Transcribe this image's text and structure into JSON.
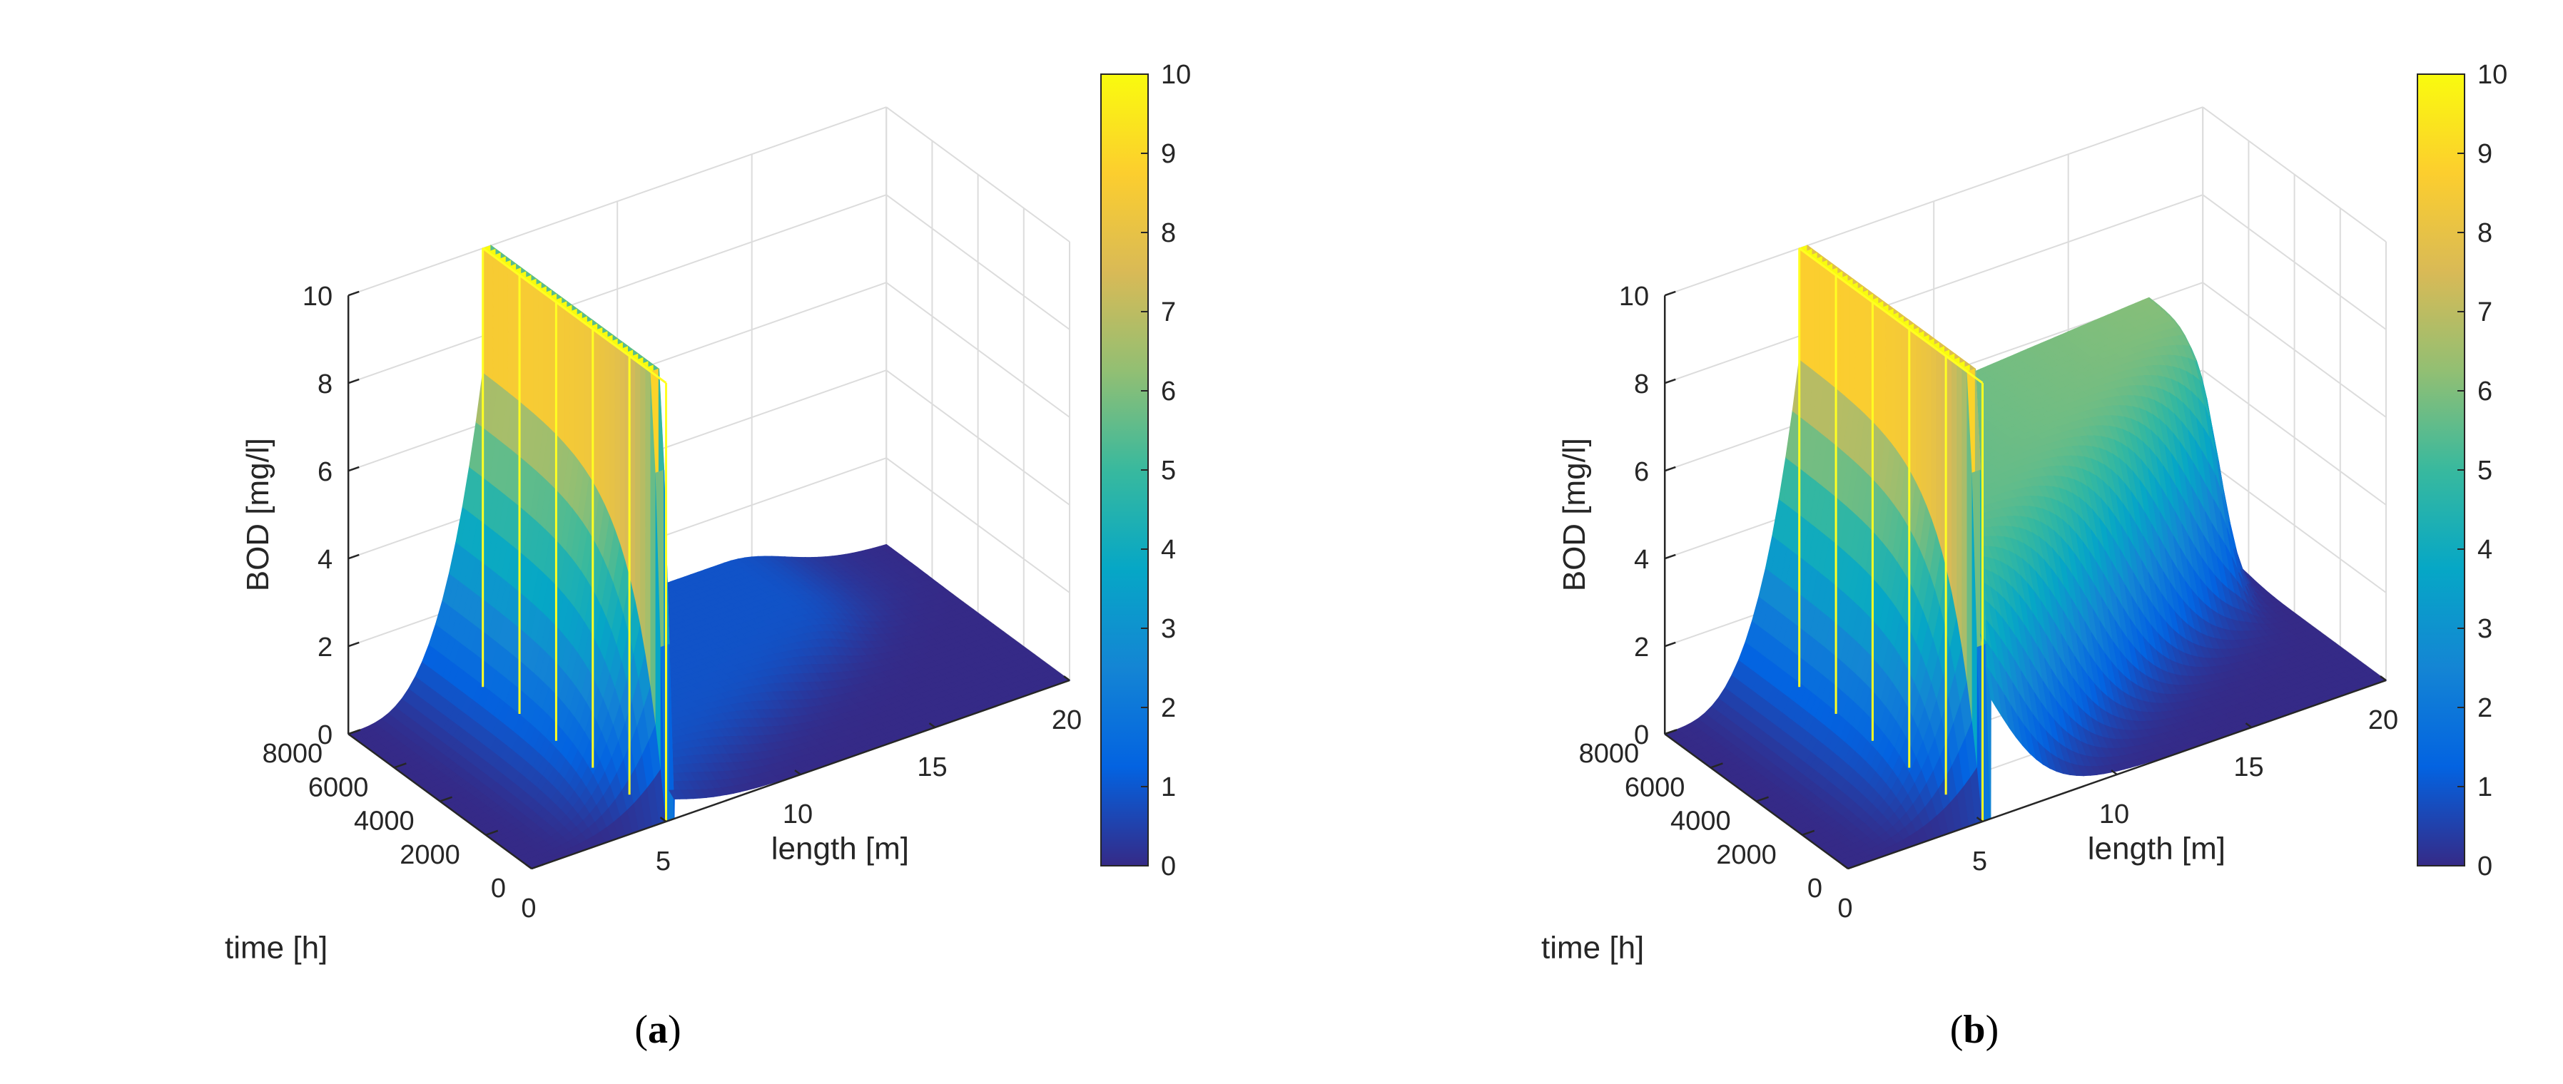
{
  "chart_data": [
    {
      "type": "surface",
      "panel_label": "a",
      "caption_open": "(",
      "caption_close": ")",
      "xlabel": "length [m]",
      "ylabel": "time [h]",
      "zlabel": "BOD [mg/l]",
      "xlim": [
        0,
        20
      ],
      "ylim": [
        0,
        8000
      ],
      "zlim": [
        0,
        10
      ],
      "xticks": [
        "0",
        "5",
        "10",
        "15",
        "20"
      ],
      "yticks": [
        "0",
        "2000",
        "4000",
        "6000",
        "8000"
      ],
      "zticks": [
        "0",
        "2",
        "4",
        "6",
        "8",
        "10"
      ],
      "colorbar": {
        "range": [
          0,
          10
        ],
        "ticks": [
          "0",
          "1",
          "2",
          "3",
          "4",
          "5",
          "6",
          "7",
          "8",
          "9",
          "10"
        ]
      },
      "source_x": 5,
      "source_value": 10,
      "upstream_peak": 7.2,
      "downstream_mid_level": 0.9,
      "downstream_end_level": 0.9,
      "downstream_decay_start": 14
    },
    {
      "type": "surface",
      "panel_label": "b",
      "caption_open": "(",
      "caption_close": ")",
      "xlabel": "length [m]",
      "ylabel": "time [h]",
      "zlabel": "BOD [mg/l]",
      "xlim": [
        0,
        20
      ],
      "ylim": [
        0,
        8000
      ],
      "zlim": [
        0,
        10
      ],
      "xticks": [
        "0",
        "5",
        "10",
        "15",
        "20"
      ],
      "yticks": [
        "0",
        "2000",
        "4000",
        "6000",
        "8000"
      ],
      "zticks": [
        "0",
        "2",
        "4",
        "6",
        "8",
        "10"
      ],
      "colorbar": {
        "range": [
          0,
          10
        ],
        "ticks": [
          "0",
          "1",
          "2",
          "3",
          "4",
          "5",
          "6",
          "7",
          "8",
          "9",
          "10"
        ]
      },
      "source_x": 5,
      "source_value": 10,
      "upstream_peak": 7.5,
      "downstream_mid_level": 5.5,
      "downstream_end_level": 6.2,
      "downstream_decay_start": 18
    }
  ],
  "colors": {
    "axis": "#262626",
    "grid": "#dcdcdc",
    "wall_edge": "#ffff22",
    "parula": [
      "#352a87",
      "#0363e1",
      "#1485d4",
      "#06a7c6",
      "#38b99e",
      "#92bf73",
      "#d9ba56",
      "#fcce2e",
      "#f9fb0e"
    ]
  }
}
